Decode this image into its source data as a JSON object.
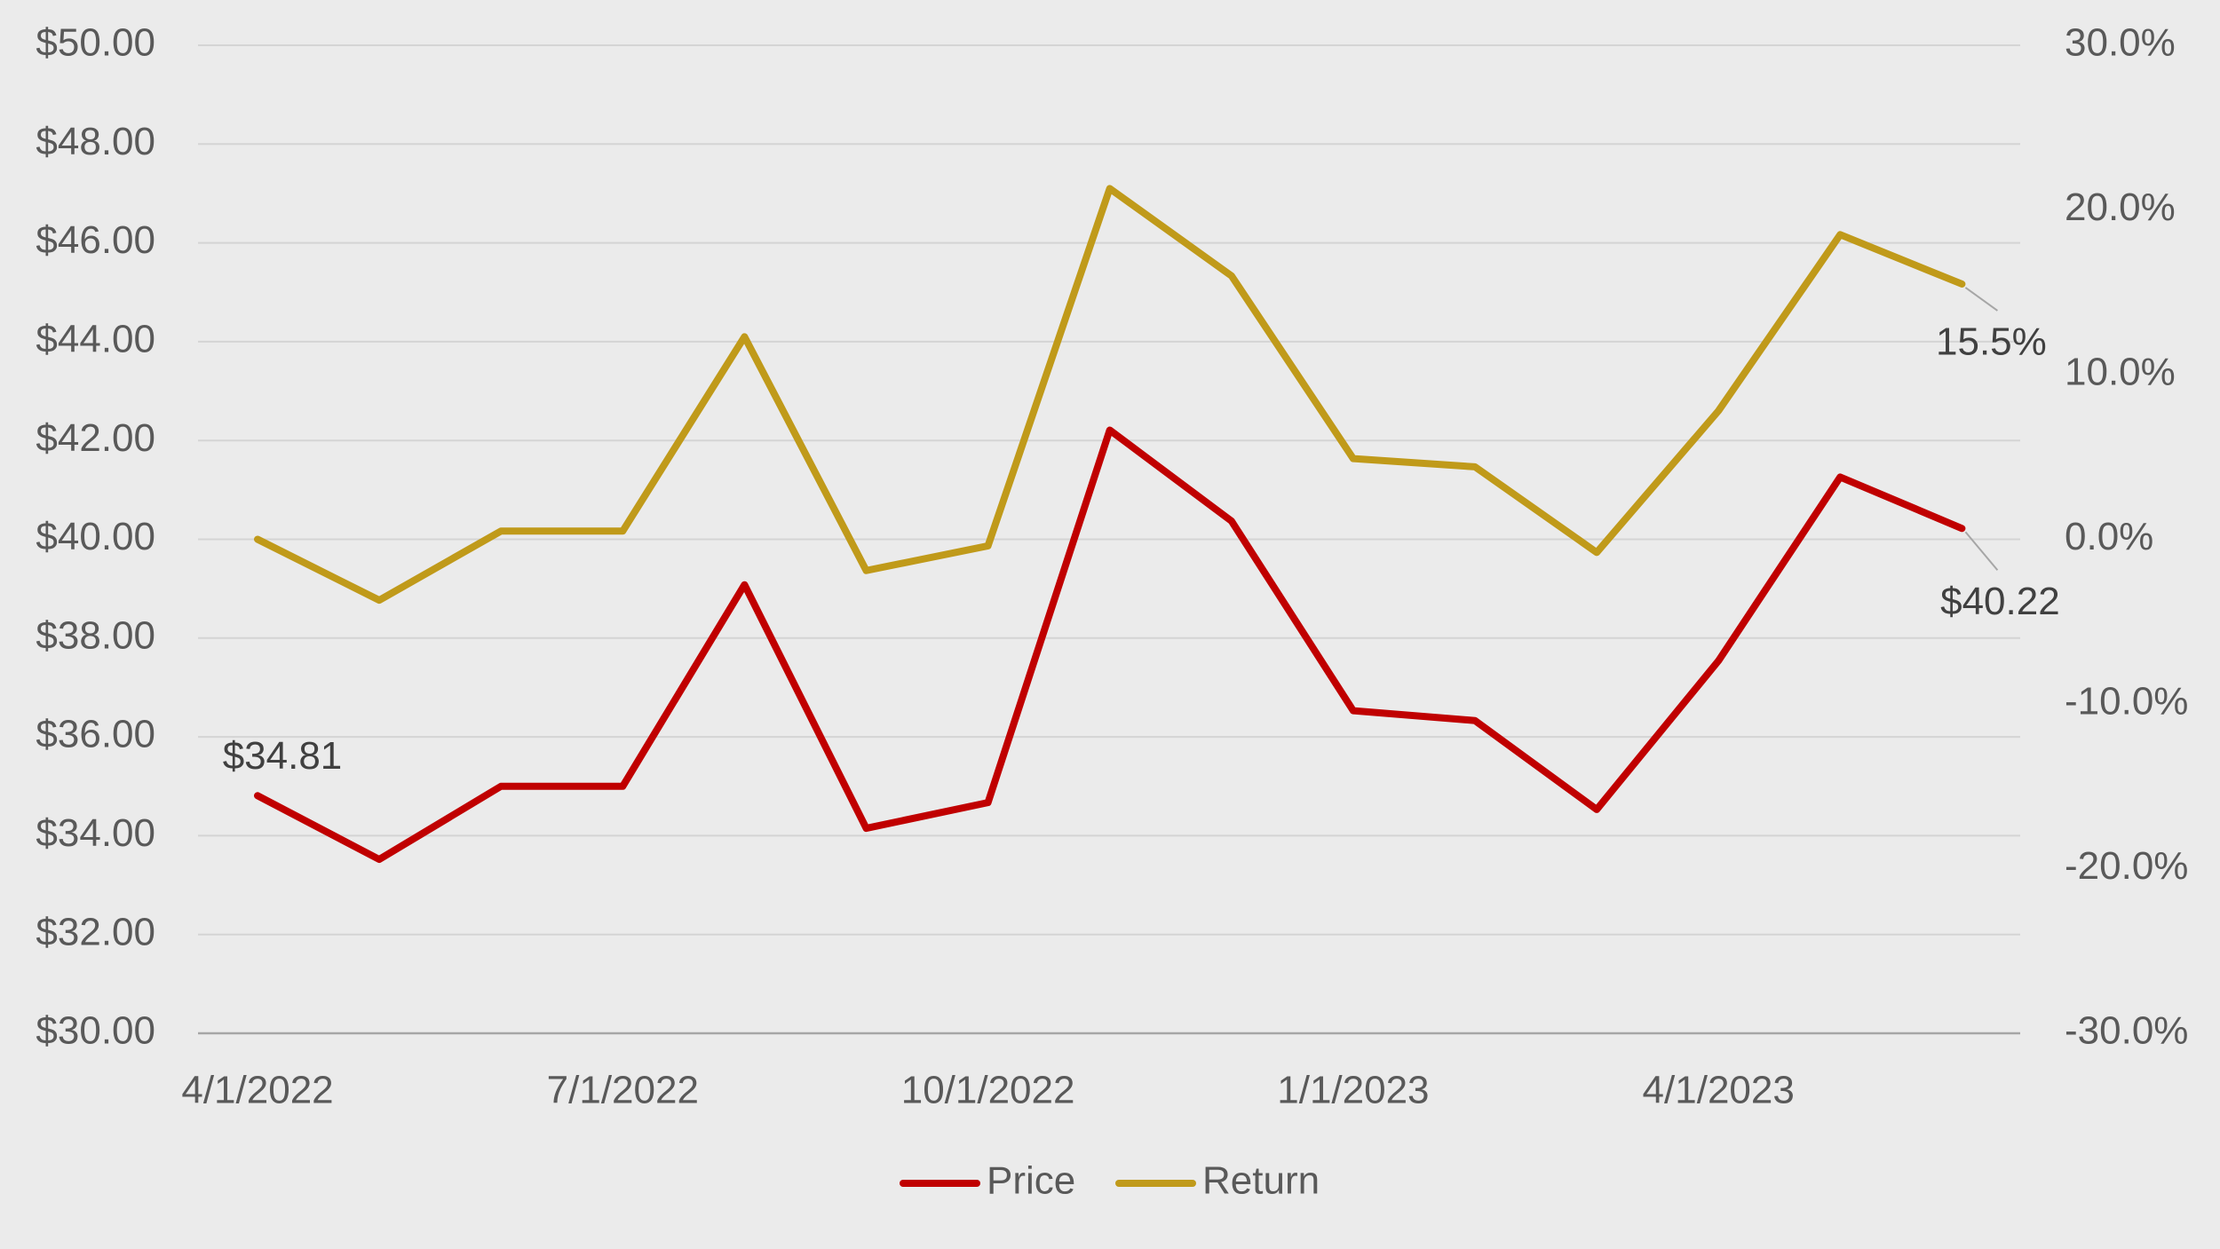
{
  "chart_data": {
    "type": "line",
    "categories": [
      "4/1/2022",
      null,
      null,
      "7/1/2022",
      null,
      null,
      "10/1/2022",
      null,
      null,
      "1/1/2023",
      null,
      null,
      "4/1/2023",
      null,
      null
    ],
    "series": [
      {
        "name": "Price",
        "color": "#c00000",
        "axis": "y",
        "values": [
          34.81,
          33.52,
          35.0,
          35.0,
          39.08,
          34.15,
          34.67,
          42.21,
          40.37,
          36.53,
          36.33,
          34.53,
          37.54,
          41.26,
          40.22
        ],
        "value_labels": [
          "$34.81",
          null,
          null,
          null,
          null,
          null,
          null,
          null,
          null,
          null,
          null,
          null,
          null,
          null,
          "$40.22"
        ]
      },
      {
        "name": "Return",
        "color": "#c09a1a",
        "axis": "y2",
        "values": [
          0.0,
          -3.7,
          0.5,
          0.5,
          12.3,
          -1.9,
          -0.4,
          21.3,
          16.0,
          4.9,
          4.4,
          -0.8,
          7.8,
          18.5,
          15.5
        ],
        "value_labels": [
          null,
          null,
          null,
          null,
          null,
          null,
          null,
          null,
          null,
          null,
          null,
          null,
          null,
          null,
          "15.5%"
        ]
      }
    ],
    "ylim": [
      30,
      50
    ],
    "yticks": [
      {
        "value": 30,
        "label": "$30.00"
      },
      {
        "value": 32,
        "label": "$32.00"
      },
      {
        "value": 34,
        "label": "$34.00"
      },
      {
        "value": 36,
        "label": "$36.00"
      },
      {
        "value": 38,
        "label": "$38.00"
      },
      {
        "value": 40,
        "label": "$40.00"
      },
      {
        "value": 42,
        "label": "$42.00"
      },
      {
        "value": 44,
        "label": "$44.00"
      },
      {
        "value": 46,
        "label": "$46.00"
      },
      {
        "value": 48,
        "label": "$48.00"
      },
      {
        "value": 50,
        "label": "$50.00"
      }
    ],
    "y2lim": [
      -30,
      30
    ],
    "y2ticks": [
      {
        "value": -30,
        "label": "-30.0%"
      },
      {
        "value": -20,
        "label": "-20.0%"
      },
      {
        "value": -10,
        "label": "-10.0%"
      },
      {
        "value": 0,
        "label": "0.0%"
      },
      {
        "value": 10,
        "label": "10.0%"
      },
      {
        "value": 20,
        "label": "20.0%"
      },
      {
        "value": 30,
        "label": "30.0%"
      }
    ],
    "grid": true,
    "legend": "bottom"
  }
}
